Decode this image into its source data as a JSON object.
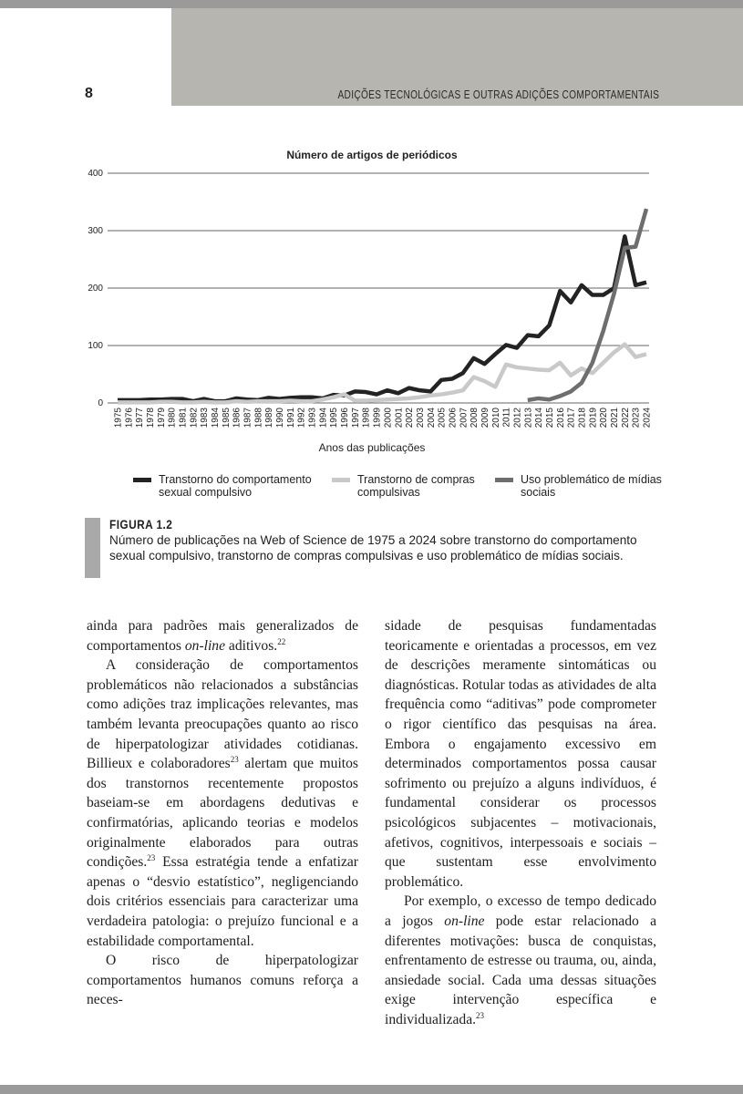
{
  "header": {
    "page_number": "8",
    "running_title": "ADIÇÕES TECNOLÓGICAS E OUTRAS ADIÇÕES COMPORTAMENTAIS"
  },
  "chart_data": {
    "type": "line",
    "title": "Número de artigos de periódicos",
    "x_label": "Anos das publicações",
    "x": [
      1975,
      1976,
      1977,
      1978,
      1979,
      1980,
      1981,
      1982,
      1983,
      1984,
      1985,
      1986,
      1987,
      1988,
      1989,
      1990,
      1991,
      1992,
      1993,
      1994,
      1995,
      1996,
      1997,
      1998,
      1999,
      2000,
      2001,
      2002,
      2003,
      2004,
      2005,
      2006,
      2007,
      2008,
      2009,
      2010,
      2011,
      2012,
      2013,
      2014,
      2015,
      2016,
      2017,
      2018,
      2019,
      2020,
      2021,
      2022,
      2023,
      2024
    ],
    "ylim": [
      0,
      400
    ],
    "yticks": [
      0,
      100,
      200,
      300,
      400
    ],
    "grid": true,
    "series": [
      {
        "name": "Transtorno do comportamento sexual compulsivo",
        "color": "#232323",
        "values": [
          5,
          5,
          5,
          6,
          6,
          7,
          7,
          3,
          7,
          3,
          3,
          8,
          6,
          5,
          9,
          7,
          9,
          10,
          10,
          8,
          14,
          13,
          20,
          19,
          15,
          22,
          17,
          26,
          22,
          20,
          40,
          42,
          52,
          78,
          68,
          85,
          101,
          96,
          118,
          116,
          135,
          195,
          175,
          205,
          188,
          188,
          200,
          290,
          205,
          210
        ]
      },
      {
        "name": "Transtorno de compras compulsivas",
        "color": "#c9c9c9",
        "values": [
          1,
          1,
          1,
          1,
          2,
          2,
          1,
          1,
          2,
          1,
          1,
          3,
          2,
          3,
          3,
          3,
          4,
          3,
          3,
          6,
          10,
          15,
          4,
          4,
          5,
          6,
          7,
          8,
          10,
          13,
          15,
          18,
          22,
          45,
          38,
          28,
          67,
          62,
          60,
          58,
          57,
          70,
          48,
          60,
          52,
          70,
          88,
          102,
          80,
          85
        ]
      },
      {
        "name": "Uso problemático de mídias sociais",
        "color": "#6e6e6e",
        "values": [
          null,
          null,
          null,
          null,
          null,
          null,
          null,
          null,
          null,
          null,
          null,
          null,
          null,
          null,
          null,
          null,
          null,
          null,
          null,
          null,
          null,
          null,
          null,
          null,
          null,
          null,
          null,
          null,
          null,
          null,
          null,
          null,
          null,
          null,
          null,
          null,
          null,
          null,
          5,
          8,
          6,
          12,
          20,
          35,
          70,
          125,
          190,
          270,
          272,
          338
        ]
      }
    ]
  },
  "figure_caption": {
    "label": "FIGURA 1.2",
    "text": "Número de publicações na Web of Science de 1975 a 2024 sobre transtorno do comportamento sexual compulsivo, transtorno de compras compulsivas e uso problemático de mídias sociais."
  },
  "body": {
    "columns": [
      {
        "paragraphs": [
          {
            "segments": [
              "ainda para padrões mais generalizados de comportamentos ",
              {
                "em": "on-line"
              },
              " aditivos.",
              {
                "sup": "22"
              }
            ]
          },
          {
            "segments": [
              "A consideração de comportamentos problemáticos não relacionados a substâncias como adições traz implicações relevantes, mas também levanta preocupações quanto ao risco de hiperpatologizar atividades cotidianas. Billieux e colaboradores",
              {
                "sup": "23"
              },
              " alertam que muitos dos transtornos recentemente propostos baseiam-se em abordagens dedutivas e confirmatórias, aplicando teorias e modelos originalmente elaborados para outras condições.",
              {
                "sup": "23"
              },
              " Essa estratégia tende a enfatizar apenas o “desvio estatístico”, negligenciando dois critérios essenciais para caracterizar uma verdadeira patologia: o prejuízo funcional e a estabilidade comportamental."
            ]
          },
          {
            "segments": [
              "O risco de hiperpatologizar comportamentos humanos comuns reforça a neces-"
            ]
          }
        ]
      },
      {
        "paragraphs": [
          {
            "segments": [
              "sidade de pesquisas fundamentadas teoricamente e orientadas a processos, em vez de descrições meramente sintomáticas ou diagnósticas. Rotular todas as atividades de alta frequência como “aditivas” pode comprometer o rigor científico das pesquisas na área. Embora o engajamento excessivo em determinados comportamentos possa causar sofrimento ou prejuízo a alguns indivíduos, é fundamental considerar os processos psicológicos subjacentes – motivacionais, afetivos, cognitivos, interpessoais e sociais – que sustentam esse envolvimento problemático."
            ]
          },
          {
            "segments": [
              "Por exemplo, o excesso de tempo dedicado a jogos ",
              {
                "em": "on-line"
              },
              " pode estar relacionado a diferentes motivações: busca de conquistas, enfrentamento de estresse ou trauma, ou, ainda, ansiedade social. Cada uma dessas situações exige intervenção específica e individualizada.",
              {
                "sup": "23"
              }
            ]
          }
        ]
      }
    ]
  }
}
